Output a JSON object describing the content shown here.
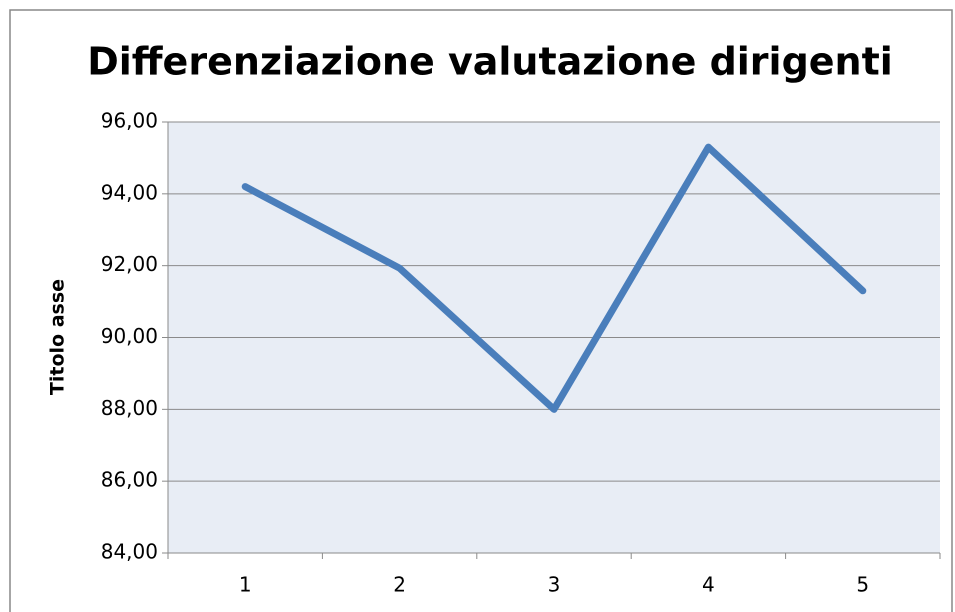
{
  "chart_data": {
    "type": "line",
    "title": "Differenziazione valutazione dirigenti",
    "y_label": "Titolo asse",
    "categories": [
      "1",
      "2",
      "3",
      "4",
      "5"
    ],
    "values": [
      94.2,
      91.93,
      88.0,
      95.3,
      91.3
    ],
    "color": "#4a7ebb",
    "ylim": [
      84,
      96
    ],
    "yticks": [
      {
        "value": 84,
        "label": "84,00"
      },
      {
        "value": 86,
        "label": "86,00"
      },
      {
        "value": 88,
        "label": "88,00"
      },
      {
        "value": 90,
        "label": "90,00"
      },
      {
        "value": 92,
        "label": "92,00"
      },
      {
        "value": 94,
        "label": "94,00"
      },
      {
        "value": 96,
        "label": "96,00"
      }
    ],
    "grid": true
  }
}
